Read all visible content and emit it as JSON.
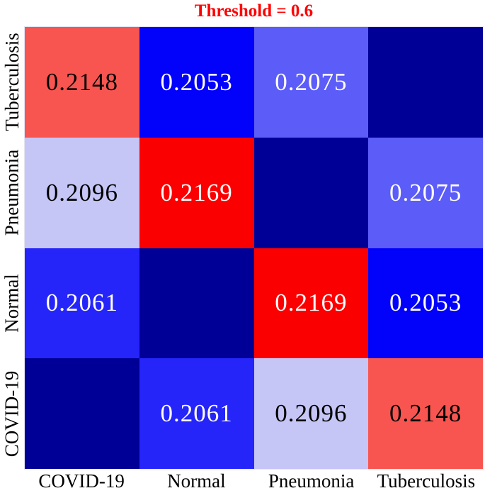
{
  "title": {
    "text": "Threshold = 0.6",
    "color": "#ff0000"
  },
  "chart_data": {
    "type": "heatmap",
    "title": "Threshold = 0.6",
    "row_labels": [
      "Tuberculosis",
      "Pneumonia",
      "Normal",
      "COVID-19"
    ],
    "col_labels": [
      "COVID-19",
      "Normal",
      "Pneumonia",
      "Tuberculosis"
    ],
    "values": [
      [
        0.2148,
        0.2053,
        0.2075,
        null
      ],
      [
        0.2096,
        0.2169,
        null,
        0.2075
      ],
      [
        0.2061,
        null,
        0.2169,
        0.2053
      ],
      [
        null,
        0.2061,
        0.2096,
        0.2148
      ]
    ],
    "legend_position": "none",
    "grid": false,
    "colormap_note": "blue-to-red diverging; diagonal cells darkest navy with no label",
    "cells": [
      [
        {
          "value": "0.2148",
          "bg": "#f85550",
          "fg": "#000000"
        },
        {
          "value": "0.2053",
          "bg": "#0202fa",
          "fg": "#ffffff"
        },
        {
          "value": "0.2075",
          "bg": "#5c5cf8",
          "fg": "#ffffff"
        },
        {
          "value": "",
          "bg": "#000096",
          "fg": "#ffffff"
        }
      ],
      [
        {
          "value": "0.2096",
          "bg": "#c5c5f6",
          "fg": "#000000"
        },
        {
          "value": "0.2169",
          "bg": "#fa0000",
          "fg": "#ffffff"
        },
        {
          "value": "",
          "bg": "#000096",
          "fg": "#ffffff"
        },
        {
          "value": "0.2075",
          "bg": "#5c5cf8",
          "fg": "#ffffff"
        }
      ],
      [
        {
          "value": "0.2061",
          "bg": "#2525fa",
          "fg": "#ffffff"
        },
        {
          "value": "",
          "bg": "#000096",
          "fg": "#ffffff"
        },
        {
          "value": "0.2169",
          "bg": "#fa0000",
          "fg": "#ffffff"
        },
        {
          "value": "0.2053",
          "bg": "#0202fa",
          "fg": "#ffffff"
        }
      ],
      [
        {
          "value": "",
          "bg": "#000096",
          "fg": "#ffffff"
        },
        {
          "value": "0.2061",
          "bg": "#2525fa",
          "fg": "#ffffff"
        },
        {
          "value": "0.2096",
          "bg": "#c5c5f6",
          "fg": "#000000"
        },
        {
          "value": "0.2148",
          "bg": "#f85550",
          "fg": "#000000"
        }
      ]
    ]
  }
}
